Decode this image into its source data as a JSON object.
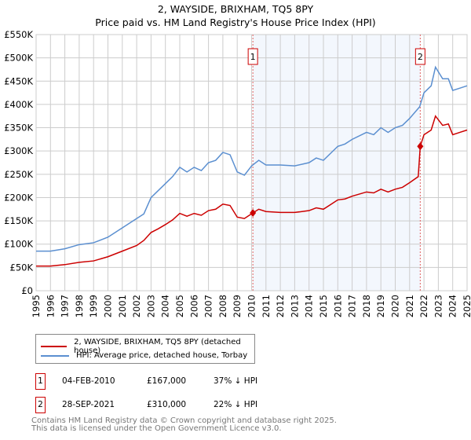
{
  "chart_data": {
    "type": "line",
    "title": "2, WAYSIDE, BRIXHAM, TQ5 8PY",
    "subtitle": "Price paid vs. HM Land Registry's House Price Index (HPI)",
    "xlim": [
      1995,
      2025
    ],
    "ylim": [
      0,
      550000
    ],
    "yticks": [
      {
        "v": 0,
        "label": "£0"
      },
      {
        "v": 50000,
        "label": "£50K"
      },
      {
        "v": 100000,
        "label": "£100K"
      },
      {
        "v": 150000,
        "label": "£150K"
      },
      {
        "v": 200000,
        "label": "£200K"
      },
      {
        "v": 250000,
        "label": "£250K"
      },
      {
        "v": 300000,
        "label": "£300K"
      },
      {
        "v": 350000,
        "label": "£350K"
      },
      {
        "v": 400000,
        "label": "£400K"
      },
      {
        "v": 450000,
        "label": "£450K"
      },
      {
        "v": 500000,
        "label": "£500K"
      },
      {
        "v": 550000,
        "label": "£550K"
      }
    ],
    "xticks": [
      "1995",
      "1996",
      "1997",
      "1998",
      "1999",
      "2000",
      "2001",
      "2002",
      "2003",
      "2004",
      "2005",
      "2006",
      "2007",
      "2008",
      "2009",
      "2010",
      "2011",
      "2012",
      "2013",
      "2014",
      "2015",
      "2016",
      "2017",
      "2018",
      "2019",
      "2020",
      "2021",
      "2022",
      "2023",
      "2024",
      "2025"
    ],
    "grid": true,
    "shaded_range": [
      2010.09,
      2021.74
    ],
    "series": [
      {
        "name": "HPI: Average price, detached house, Torbay",
        "color": "#5b8fd0",
        "x": [
          1995,
          1996,
          1997,
          1998,
          1999,
          2000,
          2001,
          2002,
          2002.5,
          2003,
          2003.5,
          2004,
          2004.5,
          2005,
          2005.5,
          2006,
          2006.5,
          2007,
          2007.5,
          2008,
          2008.5,
          2009,
          2009.5,
          2010,
          2010.5,
          2011,
          2012,
          2013,
          2014,
          2014.5,
          2015,
          2015.5,
          2016,
          2016.5,
          2017,
          2018,
          2018.5,
          2019,
          2019.5,
          2020,
          2020.5,
          2021,
          2021.7,
          2022,
          2022.5,
          2022.8,
          2023.3,
          2023.7,
          2024,
          2024.5,
          2025
        ],
        "y": [
          85,
          85,
          90,
          99,
          103,
          115,
          135,
          155,
          165,
          200,
          215,
          230,
          245,
          265,
          255,
          265,
          258,
          275,
          280,
          297,
          292,
          255,
          248,
          268,
          280,
          270,
          270,
          268,
          275,
          285,
          280,
          295,
          310,
          315,
          325,
          340,
          335,
          350,
          340,
          350,
          355,
          370,
          395,
          425,
          440,
          480,
          455,
          455,
          430,
          435,
          440
        ]
      },
      {
        "name": "2, WAYSIDE, BRIXHAM, TQ5 8PY (detached house)",
        "color": "#cc0000",
        "x": [
          1995,
          1996,
          1997,
          1998,
          1999,
          2000,
          2001,
          2002,
          2002.5,
          2003,
          2003.5,
          2004,
          2004.5,
          2005,
          2005.5,
          2006,
          2006.5,
          2007,
          2007.5,
          2008,
          2008.5,
          2009,
          2009.5,
          2010.09,
          2010.5,
          2011,
          2012,
          2013,
          2014,
          2014.5,
          2015,
          2015.5,
          2016,
          2016.5,
          2017,
          2018,
          2018.5,
          2019,
          2019.5,
          2020,
          2020.5,
          2021,
          2021.6,
          2021.74,
          2022,
          2022.5,
          2022.8,
          2023.3,
          2023.7,
          2024,
          2024.5,
          2025
        ],
        "y": [
          53,
          53,
          56,
          61,
          64,
          73,
          85,
          97,
          108,
          125,
          133,
          142,
          152,
          166,
          160,
          166,
          162,
          172,
          175,
          186,
          183,
          158,
          155,
          167,
          175,
          170,
          168,
          168,
          172,
          178,
          175,
          185,
          195,
          197,
          203,
          212,
          210,
          218,
          212,
          218,
          222,
          232,
          245,
          310,
          335,
          345,
          375,
          355,
          358,
          335,
          340,
          345
        ]
      }
    ],
    "y_unit": "thousands GBP",
    "annotations": [
      {
        "label": "1",
        "x": 2010.09,
        "y": 167
      },
      {
        "label": "2",
        "x": 2021.74,
        "y": 310
      }
    ],
    "legend_placement": "below"
  },
  "transactions": [
    {
      "num": "1",
      "date": "04-FEB-2010",
      "price": "£167,000",
      "diff": "37% ↓ HPI"
    },
    {
      "num": "2",
      "date": "28-SEP-2021",
      "price": "£310,000",
      "diff": "22% ↓ HPI"
    }
  ],
  "footer": [
    "Contains HM Land Registry data © Crown copyright and database right 2025.",
    "This data is licensed under the Open Government Licence v3.0."
  ]
}
